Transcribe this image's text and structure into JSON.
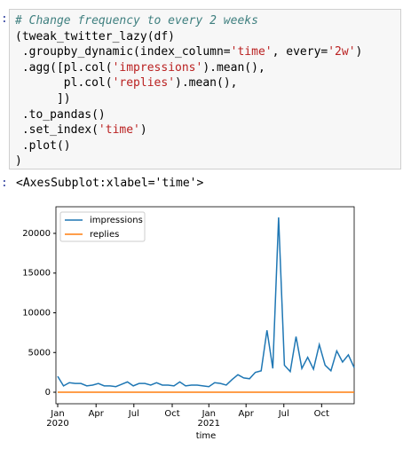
{
  "notebook": {
    "input_prompt": ":",
    "code": [
      [
        {
          "t": "# Change frequency to every 2 weeks",
          "k": "comment"
        }
      ],
      [
        {
          "t": "(tweak_twitter_lazy(df)",
          "k": "plain"
        }
      ],
      [
        {
          "t": " .groupby_dynamic(index_column=",
          "k": "plain"
        },
        {
          "t": "'time'",
          "k": "string"
        },
        {
          "t": ", every=",
          "k": "plain"
        },
        {
          "t": "'2w'",
          "k": "string"
        },
        {
          "t": ")",
          "k": "plain"
        }
      ],
      [
        {
          "t": " .agg([pl.col(",
          "k": "plain"
        },
        {
          "t": "'impressions'",
          "k": "string"
        },
        {
          "t": ").mean(),",
          "k": "plain"
        }
      ],
      [
        {
          "t": "       pl.col(",
          "k": "plain"
        },
        {
          "t": "'replies'",
          "k": "string"
        },
        {
          "t": ").mean(),",
          "k": "plain"
        }
      ],
      [
        {
          "t": "      ])",
          "k": "plain"
        }
      ],
      [
        {
          "t": " .to_pandas()",
          "k": "plain"
        }
      ],
      [
        {
          "t": " .set_index(",
          "k": "plain"
        },
        {
          "t": "'time'",
          "k": "string"
        },
        {
          "t": ")",
          "k": "plain"
        }
      ],
      [
        {
          "t": " .plot()",
          "k": "plain"
        }
      ],
      [
        {
          "t": ")",
          "k": "plain"
        }
      ]
    ],
    "output_prompt": ":",
    "output_text": "<AxesSubplot:xlabel='time'>"
  },
  "chart_data": {
    "type": "line",
    "xlabel": "time",
    "x": [
      0,
      1,
      2,
      3,
      4,
      5,
      6,
      7,
      8,
      9,
      10,
      11,
      12,
      13,
      14,
      15,
      16,
      17,
      18,
      19,
      20,
      21,
      22,
      23,
      24,
      25,
      26,
      27,
      28,
      29,
      30,
      31,
      32,
      33,
      34,
      35,
      36,
      37,
      38,
      39,
      40,
      41,
      42,
      43,
      44,
      45,
      46,
      47,
      48,
      49,
      50,
      51
    ],
    "series": [
      {
        "name": "impressions",
        "color": "#1f77b4",
        "values": [
          2000,
          800,
          1200,
          1100,
          1100,
          800,
          900,
          1100,
          800,
          800,
          700,
          1000,
          1300,
          800,
          1100,
          1100,
          900,
          1200,
          900,
          900,
          800,
          1300,
          800,
          900,
          900,
          800,
          700,
          1200,
          1100,
          900,
          1600,
          2200,
          1800,
          1700,
          2500,
          2700,
          7800,
          3000,
          22000,
          3400,
          2600,
          7000,
          3000,
          4400,
          2900,
          6000,
          3400,
          2700,
          5200,
          3800,
          4700,
          3100
        ]
      },
      {
        "name": "replies",
        "color": "#ff7f0e",
        "values": [
          5,
          5,
          5,
          5,
          5,
          5,
          5,
          5,
          5,
          5,
          5,
          5,
          5,
          5,
          5,
          5,
          5,
          5,
          5,
          5,
          5,
          5,
          5,
          5,
          5,
          5,
          5,
          5,
          5,
          5,
          5,
          5,
          5,
          5,
          5,
          5,
          5,
          5,
          5,
          5,
          5,
          5,
          5,
          5,
          5,
          5,
          5,
          5,
          5,
          5,
          5,
          5
        ]
      }
    ],
    "xlim": [
      0,
      51
    ],
    "ylim": [
      -1450,
      23350
    ],
    "yticks": [
      0,
      5000,
      10000,
      15000,
      20000
    ],
    "xticks": [
      {
        "value": 0,
        "label": "Jan"
      },
      {
        "value": 6.6,
        "label": "Apr"
      },
      {
        "value": 13.1,
        "label": "Jul"
      },
      {
        "value": 19.7,
        "label": "Oct"
      },
      {
        "value": 26,
        "label": "Jan"
      },
      {
        "value": 32.4,
        "label": "Apr"
      },
      {
        "value": 38.9,
        "label": "Jul"
      },
      {
        "value": 45.4,
        "label": "Oct"
      }
    ],
    "xyears": [
      {
        "value": 0,
        "label": "2020"
      },
      {
        "value": 26,
        "label": "2021"
      }
    ],
    "legend": "upper left"
  }
}
